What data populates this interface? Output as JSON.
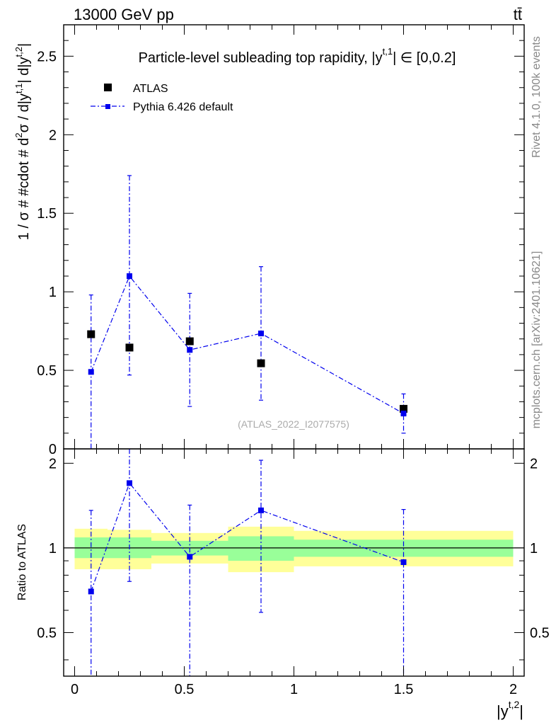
{
  "header": {
    "energy_label": "13000 GeV pp",
    "process_label": "tt̄",
    "rivet_label": "Rivet 4.1.0,  100k events",
    "mcplots_label": "mcplots.cern.ch [arXiv:2401.10621]"
  },
  "chart_data": {
    "type": "scatter",
    "title": "Particle-level subleading top rapidity, |y^{t,1}| ∈ [0,0.2]",
    "title_parts": {
      "pre": "Particle-level subleading top rapidity, |y",
      "sup": "t,1",
      "post": "| ∈ [0,0.2]"
    },
    "watermark": "(ATLAS_2022_I2077575)",
    "ylabel": "1 / σ # #cdot # d²σ / d|y^{t,1}| d|y^{t,2}|",
    "ylabel_parts": {
      "a": "1 / σ # #cdot # d",
      "b": "2",
      "c": "σ / d|y",
      "d": "t,1",
      "e": "| d|y",
      "f": "t,2",
      "g": "|"
    },
    "xlabel": "|y^{t,2}|",
    "xlabel_parts": {
      "base": "|y",
      "sup": "t,2",
      "end": "|"
    },
    "ratio_ylabel": "Ratio to ATLAS",
    "xlim": [
      -0.05,
      2.05
    ],
    "ylim": [
      0,
      2.7
    ],
    "ratio_ylim": [
      0.35,
      2.25
    ],
    "x_ticks": [
      {
        "value": 0,
        "label": "0"
      },
      {
        "value": 0.5,
        "label": "0.5"
      },
      {
        "value": 1,
        "label": "1"
      },
      {
        "value": 1.5,
        "label": "1.5"
      },
      {
        "value": 2,
        "label": "2"
      }
    ],
    "y_ticks": [
      {
        "value": 0,
        "label": "0"
      },
      {
        "value": 0.5,
        "label": "0.5"
      },
      {
        "value": 1,
        "label": "1"
      },
      {
        "value": 1.5,
        "label": "1.5"
      },
      {
        "value": 2,
        "label": "2"
      },
      {
        "value": 2.5,
        "label": "2.5"
      }
    ],
    "ratio_y_ticks": [
      {
        "value": 0.5,
        "label": "0.5"
      },
      {
        "value": 1,
        "label": "1"
      },
      {
        "value": 2,
        "label": "2"
      }
    ],
    "legend": [
      {
        "name": "ATLAS"
      },
      {
        "name": "Pythia 6.426 default"
      }
    ],
    "data_series": {
      "name": "ATLAS",
      "color": "#000000",
      "points": [
        {
          "x": 0.075,
          "y": 0.73
        },
        {
          "x": 0.25,
          "y": 0.645
        },
        {
          "x": 0.525,
          "y": 0.685
        },
        {
          "x": 0.85,
          "y": 0.545
        },
        {
          "x": 1.5,
          "y": 0.255
        }
      ]
    },
    "mc_series": {
      "name": "Pythia 6.426 default",
      "color": "#0000ee",
      "points": [
        {
          "x": 0.075,
          "y": 0.49,
          "ylo": 0.0,
          "yhi": 0.98
        },
        {
          "x": 0.25,
          "y": 1.1,
          "ylo": 0.47,
          "yhi": 1.74
        },
        {
          "x": 0.525,
          "y": 0.63,
          "ylo": 0.27,
          "yhi": 0.99
        },
        {
          "x": 0.85,
          "y": 0.735,
          "ylo": 0.31,
          "yhi": 1.16
        },
        {
          "x": 1.5,
          "y": 0.225,
          "ylo": 0.1,
          "yhi": 0.35
        }
      ]
    },
    "ratio_series": {
      "points": [
        {
          "x": 0.075,
          "y": 0.7,
          "ylo": 0.35,
          "yhi": 1.36
        },
        {
          "x": 0.25,
          "y": 1.7,
          "ylo": 0.76,
          "yhi": 2.25
        },
        {
          "x": 0.525,
          "y": 0.93,
          "ylo": 0.35,
          "yhi": 1.42
        },
        {
          "x": 0.85,
          "y": 1.36,
          "ylo": 0.59,
          "yhi": 2.05
        },
        {
          "x": 1.5,
          "y": 0.89,
          "ylo": 0.35,
          "yhi": 1.37
        }
      ]
    },
    "uncertainty_bands": [
      {
        "x0": 0.0,
        "x1": 0.15,
        "inner_lo": 0.92,
        "inner_hi": 1.09,
        "outer_lo": 0.84,
        "outer_hi": 1.17
      },
      {
        "x0": 0.15,
        "x1": 0.35,
        "inner_lo": 0.92,
        "inner_hi": 1.09,
        "outer_lo": 0.84,
        "outer_hi": 1.16
      },
      {
        "x0": 0.35,
        "x1": 0.7,
        "inner_lo": 0.94,
        "inner_hi": 1.06,
        "outer_lo": 0.88,
        "outer_hi": 1.13
      },
      {
        "x0": 0.7,
        "x1": 1.0,
        "inner_lo": 0.9,
        "inner_hi": 1.1,
        "outer_lo": 0.82,
        "outer_hi": 1.19
      },
      {
        "x0": 1.0,
        "x1": 2.0,
        "inner_lo": 0.93,
        "inner_hi": 1.07,
        "outer_lo": 0.86,
        "outer_hi": 1.15
      }
    ]
  }
}
